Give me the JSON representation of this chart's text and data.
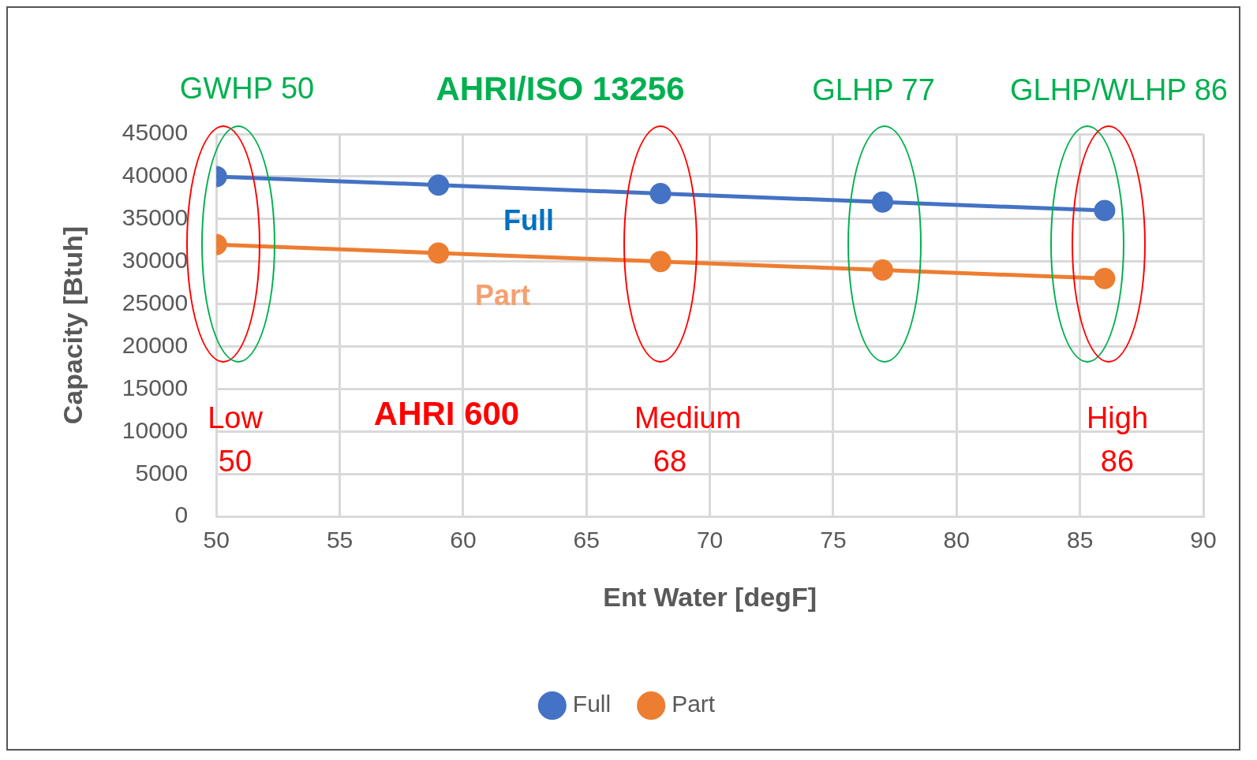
{
  "chart_data": {
    "type": "line",
    "xlabel": "Ent Water [degF]",
    "ylabel": "Capacity [Btuh]",
    "x": [
      50,
      59,
      68,
      77,
      86
    ],
    "series": [
      {
        "name": "Full",
        "color": "#4472c4",
        "values": [
          40000,
          39000,
          38000,
          37000,
          36000
        ]
      },
      {
        "name": "Part",
        "color": "#ed7d31",
        "values": [
          32000,
          31000,
          30000,
          29000,
          28000
        ]
      }
    ],
    "xlim": [
      50,
      90
    ],
    "xticks": [
      50,
      55,
      60,
      65,
      70,
      75,
      80,
      85,
      90
    ],
    "ylim": [
      0,
      45000
    ],
    "yticks": [
      0,
      5000,
      10000,
      15000,
      20000,
      25000,
      30000,
      35000,
      40000,
      45000
    ],
    "grid": true,
    "legend": "bottom",
    "marker": "circle",
    "line_style": "solid",
    "annotations": [
      "GWHP 50",
      "AHRI/ISO 13256",
      "GLHP 77",
      "GLHP/WLHP 86",
      "Full",
      "Part",
      "Low 50",
      "AHRI 600",
      "Medium 68",
      "High 86"
    ]
  }
}
